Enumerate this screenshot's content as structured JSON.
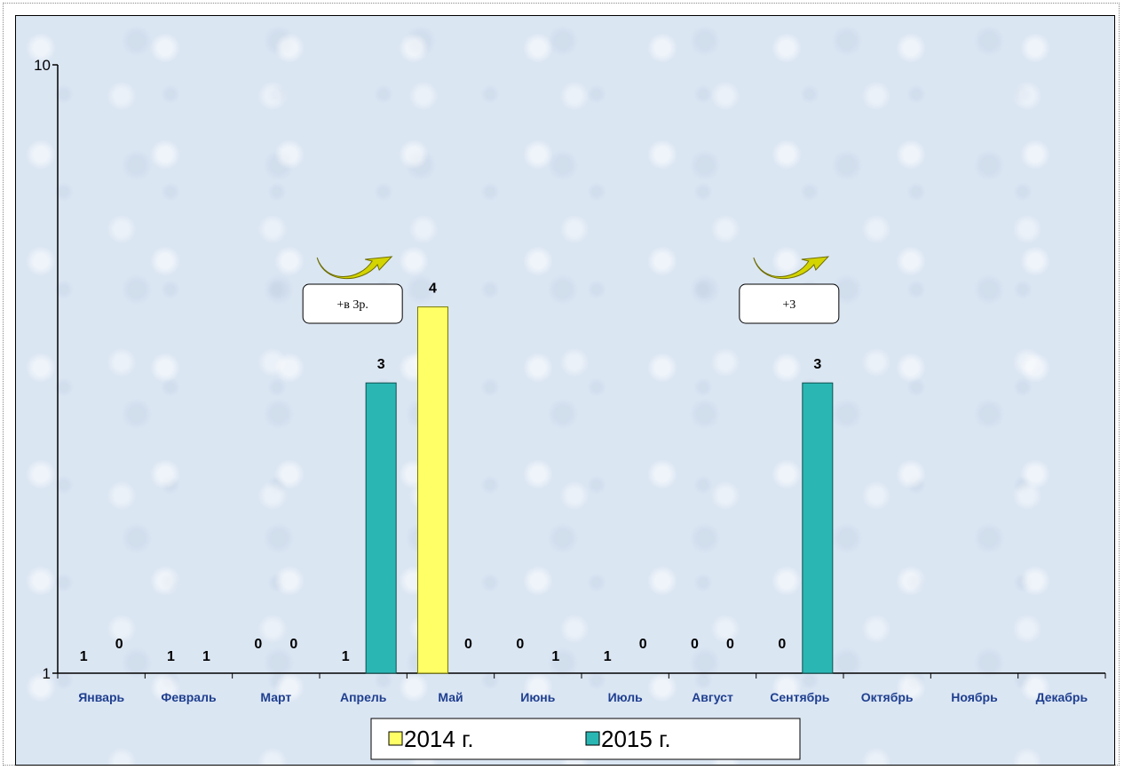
{
  "chart_data": {
    "type": "bar",
    "y_scale": "log",
    "ylim": [
      1,
      10
    ],
    "y_ticks": [
      "1",
      "10"
    ],
    "categories": [
      "Январь",
      "Февраль",
      "Март",
      "Апрель",
      "Май",
      "Июнь",
      "Июль",
      "Август",
      "Сентябрь",
      "Октябрь",
      "Ноябрь",
      "Декабрь"
    ],
    "series": [
      {
        "name": "2014 г.",
        "color": "#ffff66",
        "values": [
          1,
          1,
          0,
          1,
          4,
          0,
          1,
          0,
          0,
          null,
          null,
          null
        ]
      },
      {
        "name": "2015 г.",
        "color": "#2ab7b4",
        "values": [
          0,
          1,
          0,
          3,
          0,
          1,
          0,
          0,
          3,
          null,
          null,
          null
        ]
      }
    ],
    "legend_position": "bottom-center",
    "grid": false,
    "annotations": [
      {
        "text": "+в 3р.",
        "category": "Апрель"
      },
      {
        "text": "+3",
        "category": "Сентябрь"
      }
    ]
  }
}
